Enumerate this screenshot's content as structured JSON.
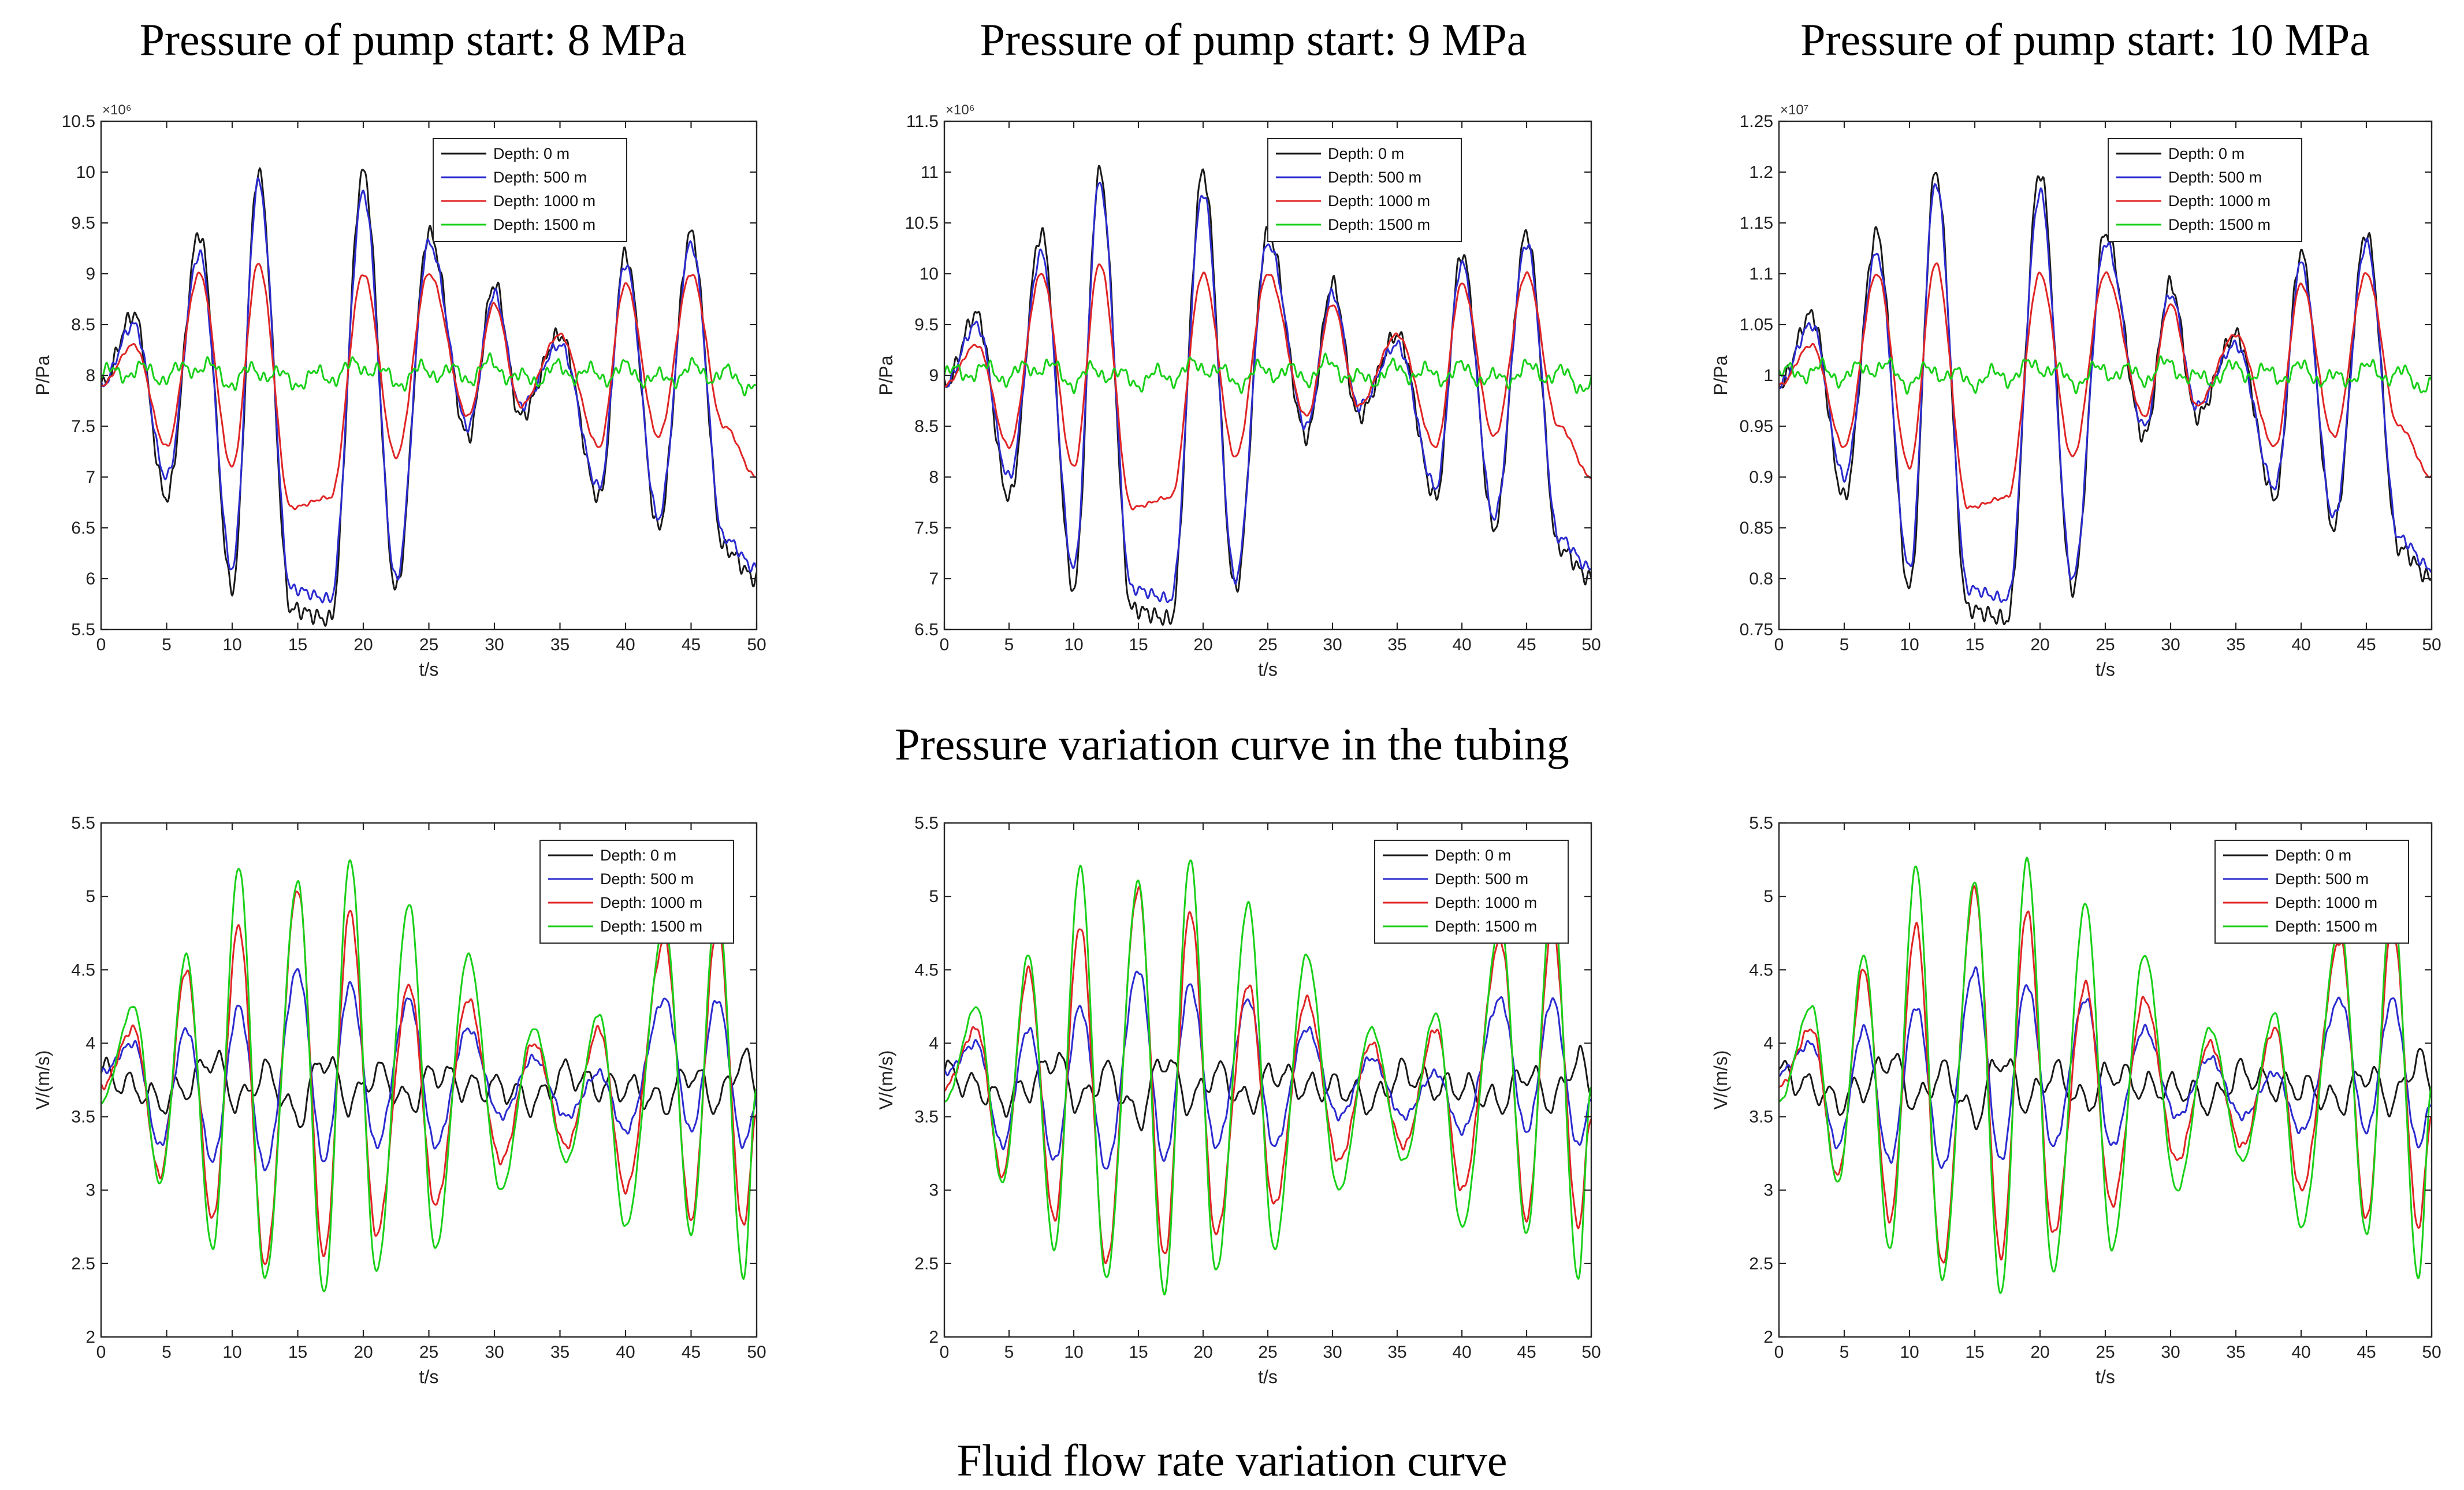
{
  "column_titles": [
    "Pressure of pump start: 8 MPa",
    "Pressure of pump start: 9 MPa",
    "Pressure of pump start: 10 MPa"
  ],
  "row_titles": [
    "Pressure variation curve in the tubing",
    "Fluid flow rate variation curve"
  ],
  "colors": {
    "Depth: 0 m": "#1a1a1a",
    "Depth: 500 m": "#2b2bd0",
    "Depth: 1000 m": "#e02525",
    "Depth: 1500 m": "#19d019"
  },
  "chart_data": [
    {
      "type": "line",
      "title": "Pressure of pump start: 8 MPa",
      "xlabel": "t/s",
      "ylabel": "P/Pa",
      "xlim": [
        0,
        50
      ],
      "ylim": [
        5.5,
        10.5
      ],
      "exponent_label": "×10⁶",
      "xticks": [
        0,
        5,
        10,
        15,
        20,
        25,
        30,
        35,
        40,
        45,
        50
      ],
      "xtick_labels": [
        "0",
        "5",
        "10",
        "15",
        "20",
        "25",
        "30",
        "35",
        "40",
        "45",
        "50"
      ],
      "yticks": [
        5.5,
        6,
        6.5,
        7,
        7.5,
        8,
        8.5,
        9,
        9.5,
        10,
        10.5
      ],
      "ytick_labels": [
        "5.5",
        "6",
        "6.5",
        "7",
        "7.5",
        "8",
        "8.5",
        "9",
        "9.5",
        "10",
        "10.5"
      ],
      "x": [
        0,
        2.5,
        5,
        7.5,
        10,
        12,
        14.5,
        17.5,
        20,
        22.5,
        25,
        28,
        30,
        32,
        35,
        38,
        40,
        42.5,
        45,
        47.5,
        50
      ],
      "series": [
        {
          "name": "Depth: 0 m",
          "values": [
            7.9,
            8.6,
            6.8,
            9.4,
            5.9,
            10.0,
            5.7,
            5.6,
            10.0,
            5.9,
            9.4,
            7.4,
            8.9,
            7.6,
            8.4,
            6.8,
            9.2,
            6.5,
            9.4,
            6.3,
            6.0
          ]
        },
        {
          "name": "Depth: 500 m",
          "values": [
            7.9,
            8.5,
            7.0,
            9.2,
            6.1,
            9.9,
            5.9,
            5.8,
            9.8,
            6.0,
            9.3,
            7.5,
            8.8,
            7.7,
            8.3,
            6.9,
            9.1,
            6.6,
            9.3,
            6.4,
            6.1
          ]
        },
        {
          "name": "Depth: 1000 m",
          "values": [
            7.9,
            8.3,
            7.3,
            9.0,
            7.1,
            9.1,
            6.7,
            6.8,
            9.0,
            7.2,
            9.0,
            7.6,
            8.7,
            7.7,
            8.4,
            7.3,
            8.9,
            7.4,
            9.0,
            7.5,
            7.0
          ]
        },
        {
          "name": "Depth: 1500 m",
          "values": [
            8.0,
            8.05,
            8.0,
            8.1,
            7.95,
            8.05,
            7.95,
            8.0,
            8.1,
            7.95,
            8.05,
            8.0,
            8.1,
            7.95,
            8.05,
            8.0,
            8.05,
            7.95,
            8.05,
            8.0,
            7.9
          ]
        }
      ]
    },
    {
      "type": "line",
      "title": "Pressure of pump start: 9 MPa",
      "xlabel": "t/s",
      "ylabel": "P/Pa",
      "xlim": [
        0,
        50
      ],
      "ylim": [
        6.5,
        11.5
      ],
      "exponent_label": "×10⁶",
      "xticks": [
        0,
        5,
        10,
        15,
        20,
        25,
        30,
        35,
        40,
        45,
        50
      ],
      "xtick_labels": [
        "0",
        "5",
        "10",
        "15",
        "20",
        "25",
        "30",
        "35",
        "40",
        "45",
        "50"
      ],
      "yticks": [
        6.5,
        7,
        7.5,
        8,
        8.5,
        9,
        9.5,
        10,
        10.5,
        11,
        11.5
      ],
      "ytick_labels": [
        "6.5",
        "7",
        "7.5",
        "8",
        "8.5",
        "9",
        "9.5",
        "10",
        "10.5",
        "11",
        "11.5"
      ],
      "x": [
        0,
        2.5,
        5,
        7.5,
        10,
        12,
        14.5,
        17.5,
        20,
        22.5,
        25,
        28,
        30,
        32,
        35,
        38,
        40,
        42.5,
        45,
        47.5,
        50
      ],
      "series": [
        {
          "name": "Depth: 0 m",
          "values": [
            8.9,
            9.6,
            7.8,
            10.4,
            6.9,
            11.0,
            6.7,
            6.6,
            11.0,
            6.9,
            10.4,
            8.4,
            9.9,
            8.6,
            9.4,
            7.8,
            10.2,
            7.5,
            10.4,
            7.3,
            7.0
          ]
        },
        {
          "name": "Depth: 500 m",
          "values": [
            8.9,
            9.5,
            8.0,
            10.2,
            7.1,
            10.9,
            6.9,
            6.8,
            10.8,
            7.0,
            10.3,
            8.5,
            9.8,
            8.7,
            9.3,
            7.9,
            10.1,
            7.6,
            10.3,
            7.4,
            7.1
          ]
        },
        {
          "name": "Depth: 1000 m",
          "values": [
            8.9,
            9.3,
            8.3,
            10.0,
            8.1,
            10.1,
            7.7,
            7.8,
            10.0,
            8.2,
            10.0,
            8.6,
            9.7,
            8.7,
            9.4,
            8.3,
            9.9,
            8.4,
            10.0,
            8.5,
            8.0
          ]
        },
        {
          "name": "Depth: 1500 m",
          "values": [
            9.0,
            9.05,
            9.0,
            9.1,
            8.95,
            9.05,
            8.95,
            9.0,
            9.1,
            8.95,
            9.05,
            9.0,
            9.1,
            8.95,
            9.05,
            9.0,
            9.05,
            8.95,
            9.05,
            9.0,
            8.9
          ]
        }
      ]
    },
    {
      "type": "line",
      "title": "Pressure of pump start: 10 MPa",
      "xlabel": "t/s",
      "ylabel": "P/Pa",
      "xlim": [
        0,
        50
      ],
      "ylim": [
        0.75,
        1.25
      ],
      "exponent_label": "×10⁷",
      "xticks": [
        0,
        5,
        10,
        15,
        20,
        25,
        30,
        35,
        40,
        45,
        50
      ],
      "xtick_labels": [
        "0",
        "5",
        "10",
        "15",
        "20",
        "25",
        "30",
        "35",
        "40",
        "45",
        "50"
      ],
      "yticks": [
        0.75,
        0.8,
        0.85,
        0.9,
        0.95,
        1.0,
        1.05,
        1.1,
        1.15,
        1.2,
        1.25
      ],
      "ytick_labels": [
        "0.75",
        "0.8",
        "0.85",
        "0.9",
        "0.95",
        "1",
        "1.05",
        "1.1",
        "1.15",
        "1.2",
        "1.25"
      ],
      "x": [
        0,
        2.5,
        5,
        7.5,
        10,
        12,
        14.5,
        17.5,
        20,
        22.5,
        25,
        28,
        30,
        32,
        35,
        38,
        40,
        42.5,
        45,
        47.5,
        50
      ],
      "series": [
        {
          "name": "Depth: 0 m",
          "values": [
            0.99,
            1.06,
            0.88,
            1.14,
            0.79,
            1.2,
            0.77,
            0.76,
            1.2,
            0.79,
            1.14,
            0.94,
            1.09,
            0.96,
            1.04,
            0.88,
            1.12,
            0.85,
            1.14,
            0.83,
            0.8
          ]
        },
        {
          "name": "Depth: 500 m",
          "values": [
            0.99,
            1.05,
            0.9,
            1.12,
            0.81,
            1.19,
            0.79,
            0.78,
            1.18,
            0.8,
            1.13,
            0.95,
            1.08,
            0.97,
            1.03,
            0.89,
            1.11,
            0.86,
            1.13,
            0.84,
            0.81
          ]
        },
        {
          "name": "Depth: 1000 m",
          "values": [
            0.99,
            1.03,
            0.93,
            1.1,
            0.91,
            1.11,
            0.87,
            0.88,
            1.1,
            0.92,
            1.1,
            0.96,
            1.07,
            0.97,
            1.04,
            0.93,
            1.09,
            0.94,
            1.1,
            0.95,
            0.9
          ]
        },
        {
          "name": "Depth: 1500 m",
          "values": [
            1.0,
            1.005,
            1.0,
            1.01,
            0.995,
            1.005,
            0.995,
            1.0,
            1.01,
            0.995,
            1.005,
            1.0,
            1.01,
            0.995,
            1.005,
            1.0,
            1.005,
            0.995,
            1.005,
            1.0,
            0.99
          ]
        }
      ]
    },
    {
      "type": "line",
      "title": "Fluid flow rate variation curve",
      "xlabel": "t/s",
      "ylabel": "V/(m/s)",
      "xlim": [
        0,
        50
      ],
      "ylim": [
        2,
        5.5
      ],
      "xticks": [
        0,
        5,
        10,
        15,
        20,
        25,
        30,
        35,
        40,
        45,
        50
      ],
      "xtick_labels": [
        "0",
        "5",
        "10",
        "15",
        "20",
        "25",
        "30",
        "35",
        "40",
        "45",
        "50"
      ],
      "yticks": [
        2,
        2.5,
        3,
        3.5,
        4,
        4.5,
        5,
        5.5
      ],
      "ytick_labels": [
        "2",
        "2.5",
        "3",
        "3.5",
        "4",
        "4.5",
        "5",
        "5.5"
      ],
      "x": [
        0,
        2.5,
        4.5,
        6.5,
        8.5,
        10.5,
        12.5,
        15,
        17,
        19,
        21,
        23.5,
        25.5,
        28,
        30.5,
        33,
        35.5,
        38,
        40,
        43,
        45,
        47,
        49,
        50
      ],
      "series": [
        {
          "name": "Depth: 0 m",
          "values": [
            3.8,
            3.7,
            3.6,
            3.7,
            3.9,
            3.6,
            3.8,
            3.5,
            3.9,
            3.6,
            3.8,
            3.6,
            3.8,
            3.7,
            3.7,
            3.6,
            3.8,
            3.7,
            3.7,
            3.6,
            3.8,
            3.6,
            3.9,
            3.7
          ]
        },
        {
          "name": "Depth: 500 m",
          "values": [
            3.8,
            4.0,
            3.3,
            4.1,
            3.2,
            4.25,
            3.15,
            4.5,
            3.2,
            4.4,
            3.3,
            4.3,
            3.3,
            4.1,
            3.5,
            3.9,
            3.5,
            3.8,
            3.4,
            4.3,
            3.4,
            4.3,
            3.3,
            3.6
          ]
        },
        {
          "name": "Depth: 1000 m",
          "values": [
            3.7,
            4.1,
            3.1,
            4.5,
            2.8,
            4.8,
            2.5,
            5.05,
            2.55,
            4.9,
            2.7,
            4.4,
            2.9,
            4.3,
            3.2,
            4.0,
            3.3,
            4.1,
            3.0,
            4.7,
            2.8,
            4.8,
            2.75,
            3.5
          ]
        },
        {
          "name": "Depth: 1500 m",
          "values": [
            3.6,
            4.25,
            3.05,
            4.6,
            2.6,
            5.2,
            2.4,
            5.1,
            2.3,
            5.25,
            2.45,
            4.95,
            2.6,
            4.6,
            3.0,
            4.1,
            3.2,
            4.2,
            2.75,
            4.8,
            2.7,
            5.0,
            2.4,
            3.7
          ]
        }
      ]
    },
    {
      "type": "line",
      "title": "Fluid flow rate variation curve",
      "xlabel": "t/s",
      "ylabel": "V/(m/s)",
      "xlim": [
        0,
        50
      ],
      "ylim": [
        2,
        5.5
      ],
      "xticks": [
        0,
        5,
        10,
        15,
        20,
        25,
        30,
        35,
        40,
        45,
        50
      ],
      "xtick_labels": [
        "0",
        "5",
        "10",
        "15",
        "20",
        "25",
        "30",
        "35",
        "40",
        "45",
        "50"
      ],
      "yticks": [
        2,
        2.5,
        3,
        3.5,
        4,
        4.5,
        5,
        5.5
      ],
      "ytick_labels": [
        "2",
        "2.5",
        "3",
        "3.5",
        "4",
        "4.5",
        "5",
        "5.5"
      ],
      "x": [
        0,
        2.5,
        4.5,
        6.5,
        8.5,
        10.5,
        12.5,
        15,
        17,
        19,
        21,
        23.5,
        25.5,
        28,
        30.5,
        33,
        35.5,
        38,
        40,
        43,
        45,
        47,
        49,
        50
      ],
      "series": [
        {
          "name": "Depth: 0 m",
          "values": [
            3.8,
            3.7,
            3.6,
            3.7,
            3.9,
            3.6,
            3.8,
            3.5,
            3.9,
            3.6,
            3.8,
            3.6,
            3.8,
            3.7,
            3.7,
            3.6,
            3.8,
            3.7,
            3.7,
            3.6,
            3.8,
            3.6,
            3.9,
            3.7
          ]
        },
        {
          "name": "Depth: 500 m",
          "values": [
            3.8,
            4.0,
            3.3,
            4.1,
            3.2,
            4.25,
            3.15,
            4.5,
            3.2,
            4.4,
            3.3,
            4.3,
            3.3,
            4.1,
            3.5,
            3.9,
            3.5,
            3.8,
            3.4,
            4.3,
            3.4,
            4.3,
            3.3,
            3.6
          ]
        },
        {
          "name": "Depth: 1000 m",
          "values": [
            3.7,
            4.1,
            3.1,
            4.5,
            2.8,
            4.8,
            2.5,
            5.05,
            2.55,
            4.9,
            2.7,
            4.4,
            2.9,
            4.3,
            3.2,
            4.0,
            3.3,
            4.1,
            3.0,
            4.7,
            2.8,
            4.8,
            2.75,
            3.5
          ]
        },
        {
          "name": "Depth: 1500 m",
          "values": [
            3.6,
            4.25,
            3.05,
            4.6,
            2.6,
            5.2,
            2.4,
            5.1,
            2.3,
            5.25,
            2.45,
            4.95,
            2.6,
            4.6,
            3.0,
            4.1,
            3.2,
            4.2,
            2.75,
            4.8,
            2.7,
            5.0,
            2.4,
            3.7
          ]
        }
      ]
    },
    {
      "type": "line",
      "title": "Fluid flow rate variation curve",
      "xlabel": "t/s",
      "ylabel": "V/(m/s)",
      "xlim": [
        0,
        50
      ],
      "ylim": [
        2,
        5.5
      ],
      "xticks": [
        0,
        5,
        10,
        15,
        20,
        25,
        30,
        35,
        40,
        45,
        50
      ],
      "xtick_labels": [
        "0",
        "5",
        "10",
        "15",
        "20",
        "25",
        "30",
        "35",
        "40",
        "45",
        "50"
      ],
      "yticks": [
        2,
        2.5,
        3,
        3.5,
        4,
        4.5,
        5,
        5.5
      ],
      "ytick_labels": [
        "2",
        "2.5",
        "3",
        "3.5",
        "4",
        "4.5",
        "5",
        "5.5"
      ],
      "x": [
        0,
        2.5,
        4.5,
        6.5,
        8.5,
        10.5,
        12.5,
        15,
        17,
        19,
        21,
        23.5,
        25.5,
        28,
        30.5,
        33,
        35.5,
        38,
        40,
        43,
        45,
        47,
        49,
        50
      ],
      "series": [
        {
          "name": "Depth: 0 m",
          "values": [
            3.8,
            3.7,
            3.6,
            3.7,
            3.9,
            3.6,
            3.8,
            3.5,
            3.9,
            3.6,
            3.8,
            3.6,
            3.8,
            3.7,
            3.7,
            3.6,
            3.8,
            3.7,
            3.7,
            3.6,
            3.8,
            3.6,
            3.9,
            3.7
          ]
        },
        {
          "name": "Depth: 500 m",
          "values": [
            3.8,
            4.0,
            3.3,
            4.1,
            3.2,
            4.25,
            3.15,
            4.5,
            3.2,
            4.4,
            3.3,
            4.3,
            3.3,
            4.1,
            3.5,
            3.9,
            3.5,
            3.8,
            3.4,
            4.3,
            3.4,
            4.3,
            3.3,
            3.6
          ]
        },
        {
          "name": "Depth: 1000 m",
          "values": [
            3.7,
            4.1,
            3.1,
            4.5,
            2.8,
            4.8,
            2.5,
            5.05,
            2.55,
            4.9,
            2.7,
            4.4,
            2.9,
            4.3,
            3.2,
            4.0,
            3.3,
            4.1,
            3.0,
            4.7,
            2.8,
            4.8,
            2.75,
            3.5
          ]
        },
        {
          "name": "Depth: 1500 m",
          "values": [
            3.6,
            4.25,
            3.05,
            4.6,
            2.6,
            5.2,
            2.4,
            5.1,
            2.3,
            5.25,
            2.45,
            4.95,
            2.6,
            4.6,
            3.0,
            4.1,
            3.2,
            4.2,
            2.75,
            4.8,
            2.7,
            5.0,
            2.4,
            3.7
          ]
        }
      ]
    }
  ]
}
